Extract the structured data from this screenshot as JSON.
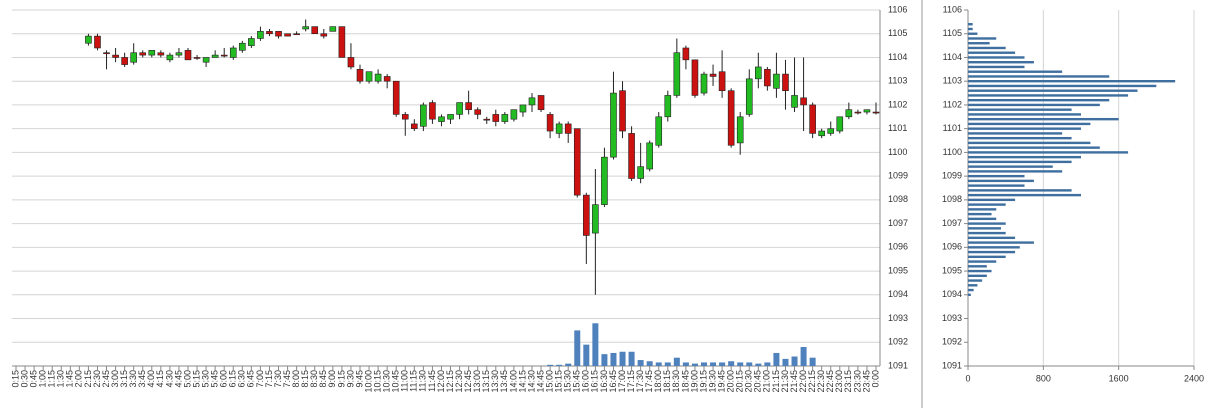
{
  "chart_data": [
    {
      "type": "candlestick",
      "categories": [
        "0:15",
        "0:30",
        "0:45",
        "1:00",
        "1:15",
        "1:30",
        "1:45",
        "2:00",
        "2:15",
        "2:30",
        "2:45",
        "3:00",
        "3:15",
        "3:30",
        "3:45",
        "4:00",
        "4:15",
        "4:30",
        "4:45",
        "5:00",
        "5:15",
        "5:30",
        "5:45",
        "6:00",
        "6:15",
        "6:30",
        "6:45",
        "7:00",
        "7:15",
        "7:30",
        "7:45",
        "8:00",
        "8:15",
        "8:30",
        "8:45",
        "9:00",
        "9:15",
        "9:30",
        "9:45",
        "10:00",
        "10:15",
        "10:30",
        "10:45",
        "11:00",
        "11:15",
        "11:30",
        "11:45",
        "12:00",
        "12:15",
        "12:30",
        "12:45",
        "13:00",
        "13:15",
        "13:30",
        "13:45",
        "14:00",
        "14:15",
        "14:30",
        "14:45",
        "15:00",
        "15:15",
        "15:30",
        "15:45",
        "16:00",
        "16:15",
        "16:30",
        "16:45",
        "17:00",
        "17:15",
        "17:30",
        "17:45",
        "18:00",
        "18:15",
        "18:30",
        "18:45",
        "19:00",
        "19:15",
        "19:30",
        "19:45",
        "20:00",
        "20:15",
        "20:30",
        "20:45",
        "21:00",
        "21:15",
        "21:30",
        "21:45",
        "22:00",
        "22:15",
        "22:30",
        "22:45",
        "23:00",
        "23:15",
        "23:30",
        "23:45",
        "0:00"
      ],
      "open": [
        null,
        null,
        null,
        null,
        null,
        null,
        null,
        null,
        1104.6,
        1104.9,
        1104.2,
        1104.1,
        1104.0,
        1103.8,
        1104.2,
        1104.1,
        1104.2,
        1103.9,
        1104.1,
        1104.3,
        1104.0,
        1103.8,
        1104.0,
        1104.1,
        1104.0,
        1104.3,
        1104.5,
        1104.8,
        1105.1,
        1105.1,
        1105.0,
        1105.0,
        1105.2,
        1105.3,
        1105.0,
        1105.1,
        1105.3,
        1104.0,
        1103.5,
        1103.0,
        1103.0,
        1103.2,
        1103.0,
        1101.6,
        1101.2,
        1101.1,
        1102.1,
        1101.3,
        1101.4,
        1101.6,
        1102.1,
        1101.8,
        1101.4,
        1101.6,
        1101.3,
        1101.4,
        1101.7,
        1102.0,
        1102.4,
        1101.6,
        1100.8,
        1101.2,
        1101.0,
        1098.2,
        1096.6,
        1097.8,
        1099.8,
        1102.6,
        1100.8,
        1098.9,
        1099.3,
        1100.3,
        1101.5,
        1102.4,
        1104.4,
        1103.9,
        1102.5,
        1103.3,
        1103.4,
        1102.6,
        1100.4,
        1101.6,
        1103.1,
        1103.5,
        1102.7,
        1103.3,
        1101.9,
        1102.3,
        1102.0,
        1100.7,
        1100.8,
        1100.9,
        1101.5,
        1101.7,
        1101.7,
        1101.7
      ],
      "high": [
        null,
        null,
        null,
        null,
        null,
        null,
        null,
        null,
        1105.0,
        1105.0,
        1104.3,
        1104.4,
        1104.2,
        1104.6,
        1104.3,
        1104.3,
        1104.3,
        1104.2,
        1104.4,
        1104.4,
        1104.1,
        1104.0,
        1104.3,
        1104.4,
        1104.5,
        1104.7,
        1104.9,
        1105.3,
        1105.2,
        1105.1,
        1105.0,
        1105.1,
        1105.6,
        1105.3,
        1105.2,
        1105.3,
        1105.3,
        1104.6,
        1103.7,
        1103.4,
        1103.5,
        1103.3,
        1103.0,
        1101.7,
        1101.4,
        1102.1,
        1102.2,
        1101.6,
        1101.6,
        1102.1,
        1102.6,
        1101.9,
        1101.5,
        1101.8,
        1101.7,
        1101.8,
        1102.0,
        1102.5,
        1102.4,
        1101.7,
        1101.3,
        1101.3,
        1101.0,
        1098.3,
        1099.3,
        1100.2,
        1103.4,
        1103.0,
        1101.1,
        1100.4,
        1100.5,
        1101.7,
        1102.6,
        1104.8,
        1104.5,
        1103.9,
        1103.4,
        1103.7,
        1104.3,
        1102.7,
        1101.7,
        1103.5,
        1104.2,
        1103.6,
        1104.2,
        1103.9,
        1104.0,
        1104.0,
        1102.1,
        1101.0,
        1101.3,
        1101.5,
        1102.1,
        1101.8,
        1101.8,
        1102.1
      ],
      "low": [
        null,
        null,
        null,
        null,
        null,
        null,
        null,
        null,
        1104.5,
        1104.3,
        1103.5,
        1103.8,
        1103.6,
        1103.7,
        1104.0,
        1104.0,
        1104.0,
        1103.8,
        1104.0,
        1103.9,
        1103.9,
        1103.6,
        1104.0,
        1104.0,
        1103.9,
        1104.2,
        1104.4,
        1104.7,
        1104.9,
        1104.8,
        1104.9,
        1105.0,
        1105.1,
        1105.0,
        1104.8,
        1105.1,
        1104.0,
        1103.5,
        1102.9,
        1102.9,
        1102.9,
        1102.7,
        1101.5,
        1100.7,
        1100.9,
        1100.9,
        1101.2,
        1101.1,
        1101.2,
        1101.4,
        1101.6,
        1101.4,
        1101.2,
        1101.1,
        1101.2,
        1101.3,
        1101.5,
        1101.7,
        1101.7,
        1100.6,
        1100.6,
        1100.4,
        1098.1,
        1095.3,
        1094.0,
        1097.7,
        1099.7,
        1100.6,
        1098.8,
        1098.7,
        1099.2,
        1100.2,
        1101.3,
        1102.3,
        1103.5,
        1102.3,
        1102.4,
        1102.8,
        1102.3,
        1100.2,
        1099.9,
        1101.5,
        1102.7,
        1102.6,
        1102.3,
        1101.8,
        1101.7,
        1100.9,
        1100.6,
        1100.6,
        1100.7,
        1100.8,
        1101.4,
        1101.6,
        1101.6,
        1101.6
      ],
      "close": [
        null,
        null,
        null,
        null,
        null,
        null,
        null,
        null,
        1104.9,
        1104.4,
        1104.2,
        1104.0,
        1103.7,
        1104.2,
        1104.1,
        1104.3,
        1104.1,
        1104.1,
        1104.2,
        1103.9,
        1104.0,
        1104.0,
        1104.1,
        1104.1,
        1104.4,
        1104.6,
        1104.8,
        1105.1,
        1105.0,
        1104.9,
        1104.9,
        1105.0,
        1105.3,
        1105.0,
        1104.9,
        1105.3,
        1104.0,
        1103.6,
        1103.0,
        1103.4,
        1103.3,
        1103.0,
        1101.6,
        1101.4,
        1101.0,
        1102.0,
        1101.4,
        1101.5,
        1101.6,
        1102.1,
        1101.8,
        1101.6,
        1101.4,
        1101.3,
        1101.6,
        1101.8,
        1102.0,
        1102.3,
        1101.8,
        1100.9,
        1101.2,
        1100.8,
        1098.2,
        1096.5,
        1097.8,
        1099.8,
        1102.5,
        1100.9,
        1098.9,
        1099.4,
        1100.4,
        1101.5,
        1102.4,
        1104.2,
        1103.9,
        1102.4,
        1103.3,
        1103.2,
        1102.6,
        1100.3,
        1101.5,
        1103.1,
        1103.6,
        1102.8,
        1103.3,
        1102.6,
        1102.4,
        1102.0,
        1100.8,
        1100.9,
        1101.0,
        1101.5,
        1101.8,
        1101.7,
        1101.8,
        1101.7
      ],
      "volume": [
        0,
        0,
        0,
        0,
        0,
        0,
        0,
        0,
        0,
        0,
        0,
        0,
        0,
        0,
        0,
        0,
        0,
        0,
        0,
        0,
        0,
        0,
        0,
        0,
        0,
        0,
        0,
        0,
        0,
        0,
        0,
        0,
        0,
        0,
        0,
        0,
        0,
        0,
        0,
        0,
        0,
        0,
        0,
        0,
        0,
        0,
        0,
        0,
        0,
        0,
        0,
        0,
        0,
        0,
        0,
        0,
        0,
        0,
        0,
        0.05,
        0.05,
        0.1,
        1.5,
        0.9,
        1.8,
        0.5,
        0.55,
        0.6,
        0.6,
        0.25,
        0.2,
        0.15,
        0.15,
        0.35,
        0.15,
        0.1,
        0.15,
        0.15,
        0.15,
        0.2,
        0.15,
        0.15,
        0.1,
        0.15,
        0.55,
        0.3,
        0.4,
        0.8,
        0.35,
        0,
        0,
        0,
        0,
        0,
        0,
        0
      ],
      "up_color": "#22bb22",
      "down_color": "#cc1111",
      "volume_color": "#4f81bd",
      "ylim": [
        1091,
        1106
      ],
      "yticks": [
        1091,
        1092,
        1093,
        1094,
        1095,
        1096,
        1097,
        1098,
        1099,
        1100,
        1101,
        1102,
        1103,
        1104,
        1105,
        1106
      ],
      "grid": true
    },
    {
      "type": "barh",
      "y": [
        1105.4,
        1105.2,
        1105.0,
        1104.8,
        1104.6,
        1104.4,
        1104.2,
        1104.0,
        1103.8,
        1103.6,
        1103.4,
        1103.2,
        1103.0,
        1102.8,
        1102.6,
        1102.4,
        1102.2,
        1102.0,
        1101.8,
        1101.6,
        1101.4,
        1101.2,
        1101.0,
        1100.8,
        1100.6,
        1100.4,
        1100.2,
        1100.0,
        1099.8,
        1099.6,
        1099.4,
        1099.2,
        1099.0,
        1098.8,
        1098.6,
        1098.4,
        1098.2,
        1098.0,
        1097.8,
        1097.6,
        1097.4,
        1097.2,
        1097.0,
        1096.8,
        1096.6,
        1096.4,
        1096.2,
        1096.0,
        1095.8,
        1095.6,
        1095.4,
        1095.2,
        1095.0,
        1094.8,
        1094.6,
        1094.4,
        1094.2,
        1094.0
      ],
      "values": [
        50,
        50,
        100,
        300,
        230,
        400,
        500,
        600,
        700,
        600,
        1000,
        1500,
        2200,
        2000,
        1800,
        1700,
        1500,
        1400,
        1100,
        1200,
        1600,
        1300,
        1200,
        1000,
        1100,
        1300,
        1400,
        1700,
        1200,
        1100,
        900,
        1000,
        600,
        700,
        600,
        1100,
        1200,
        500,
        400,
        300,
        250,
        300,
        400,
        350,
        400,
        500,
        700,
        550,
        500,
        400,
        300,
        200,
        250,
        200,
        150,
        100,
        60,
        30
      ],
      "color": "#3f6f9f",
      "xlim": [
        0,
        2400
      ],
      "xticks": [
        0,
        800,
        1600,
        2400
      ],
      "ylim": [
        1091,
        1106
      ],
      "yticks": [
        1091,
        1092,
        1093,
        1094,
        1095,
        1096,
        1097,
        1098,
        1099,
        1100,
        1101,
        1102,
        1103,
        1104,
        1105,
        1106
      ],
      "grid": true
    }
  ]
}
